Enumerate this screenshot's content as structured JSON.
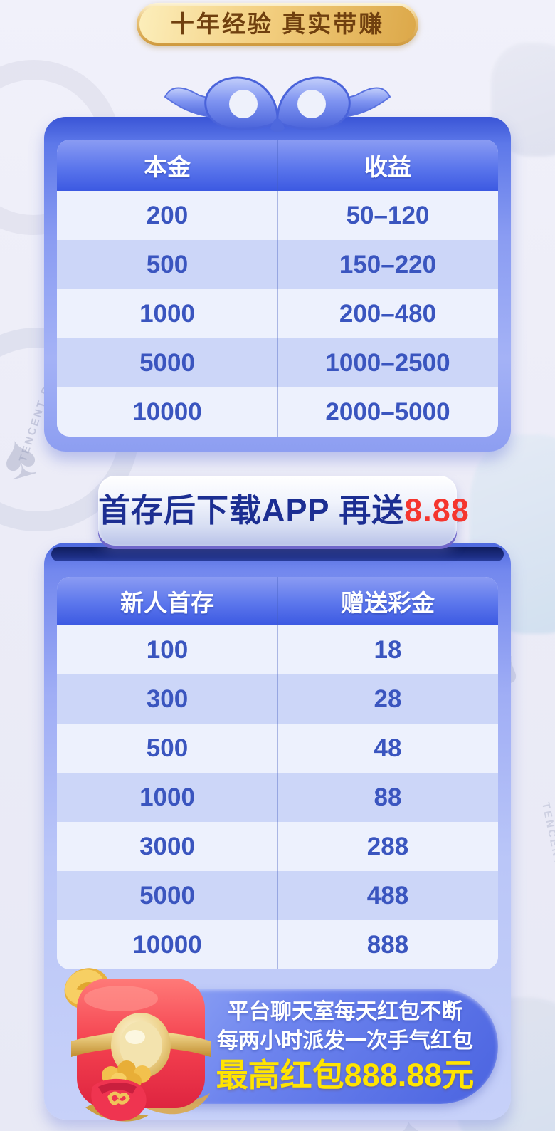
{
  "badge": {
    "label": "十年经验 真实带赚"
  },
  "profit_table": {
    "headers": [
      "本金",
      "收益"
    ],
    "rows": [
      [
        "200",
        "50–120"
      ],
      [
        "500",
        "150–220"
      ],
      [
        "1000",
        "200–480"
      ],
      [
        "5000",
        "1000–2500"
      ],
      [
        "10000",
        "2000–5000"
      ]
    ]
  },
  "plaque": {
    "text": "首存后下载APP 再送",
    "highlight": "8.88"
  },
  "deposit_table": {
    "headers": [
      "新人首存",
      "赠送彩金"
    ],
    "rows": [
      [
        "100",
        "18"
      ],
      [
        "300",
        "28"
      ],
      [
        "500",
        "48"
      ],
      [
        "1000",
        "88"
      ],
      [
        "3000",
        "288"
      ],
      [
        "5000",
        "488"
      ],
      [
        "10000",
        "888"
      ]
    ]
  },
  "promo": {
    "line1": "平台聊天室每天红包不断",
    "line2": "每两小时派发一次手气红包",
    "highlight": "最高红包888.88元"
  },
  "watermark": {
    "brand": "TENCENT POKER"
  },
  "icons": {
    "spade": "♠"
  },
  "colors": {
    "accent_red": "#f5352e",
    "highlight_yellow": "#ffe400",
    "table_text_blue": "#3a55bf",
    "header_blue": "#3c59e2",
    "gold": "#d9a94e"
  }
}
